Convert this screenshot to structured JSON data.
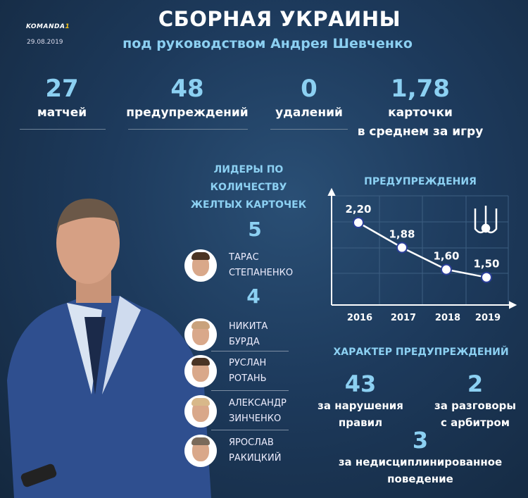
{
  "header": {
    "logo": "KOMANDA",
    "logo_mark": "1",
    "date": "29.08.2019",
    "title": "СБОРНАЯ УКРАИНЫ",
    "subtitle": "под руководством Андрея Шевченко"
  },
  "stats": [
    {
      "value": "27",
      "label": "матчей"
    },
    {
      "value": "48",
      "label": "предупреждений"
    },
    {
      "value": "0",
      "label": "удалений"
    },
    {
      "value": "1,78",
      "label": "карточки",
      "label2": "в среднем за игру"
    }
  ],
  "leaders": {
    "title": [
      "ЛИДЕРЫ ПО",
      "КОЛИЧЕСТВУ",
      "ЖЕЛТЫХ КАРТОЧЕК"
    ],
    "groups": [
      {
        "count": "5",
        "players": [
          {
            "first": "ТАРАС",
            "last": "СТЕПАНЕНКО"
          }
        ]
      },
      {
        "count": "4",
        "players": [
          {
            "first": "НИКИТА",
            "last": "БУРДА"
          },
          {
            "first": "РУСЛАН",
            "last": "РОТАНЬ"
          },
          {
            "first": "АЛЕКСАНДР",
            "last": "ЗИНЧЕНКО"
          },
          {
            "first": "ЯРОСЛАВ",
            "last": "РАКИЦКИЙ"
          }
        ]
      }
    ]
  },
  "chart_data": {
    "type": "line",
    "title": "ПРЕДУПРЕЖДЕНИЯ",
    "categories": [
      "2016",
      "2017",
      "2018",
      "2019"
    ],
    "values": [
      2.2,
      1.88,
      1.6,
      1.5
    ],
    "data_labels": [
      "2,20",
      "1,88",
      "1,60",
      "1,50"
    ],
    "grid": true,
    "icon": "ukraine-trident-icon"
  },
  "nature": {
    "title": "ХАРАКТЕР ПРЕДУПРЕЖДЕНИЙ",
    "items": [
      {
        "value": "43",
        "label": [
          "за нарушения",
          "правил"
        ]
      },
      {
        "value": "2",
        "label": [
          "за разговоры",
          "с арбитром"
        ]
      },
      {
        "value": "3",
        "label": [
          "за недисциплинированное",
          "поведение"
        ]
      }
    ]
  },
  "colors": {
    "accent": "#8cd0f2",
    "background": "#1d3a5c"
  }
}
